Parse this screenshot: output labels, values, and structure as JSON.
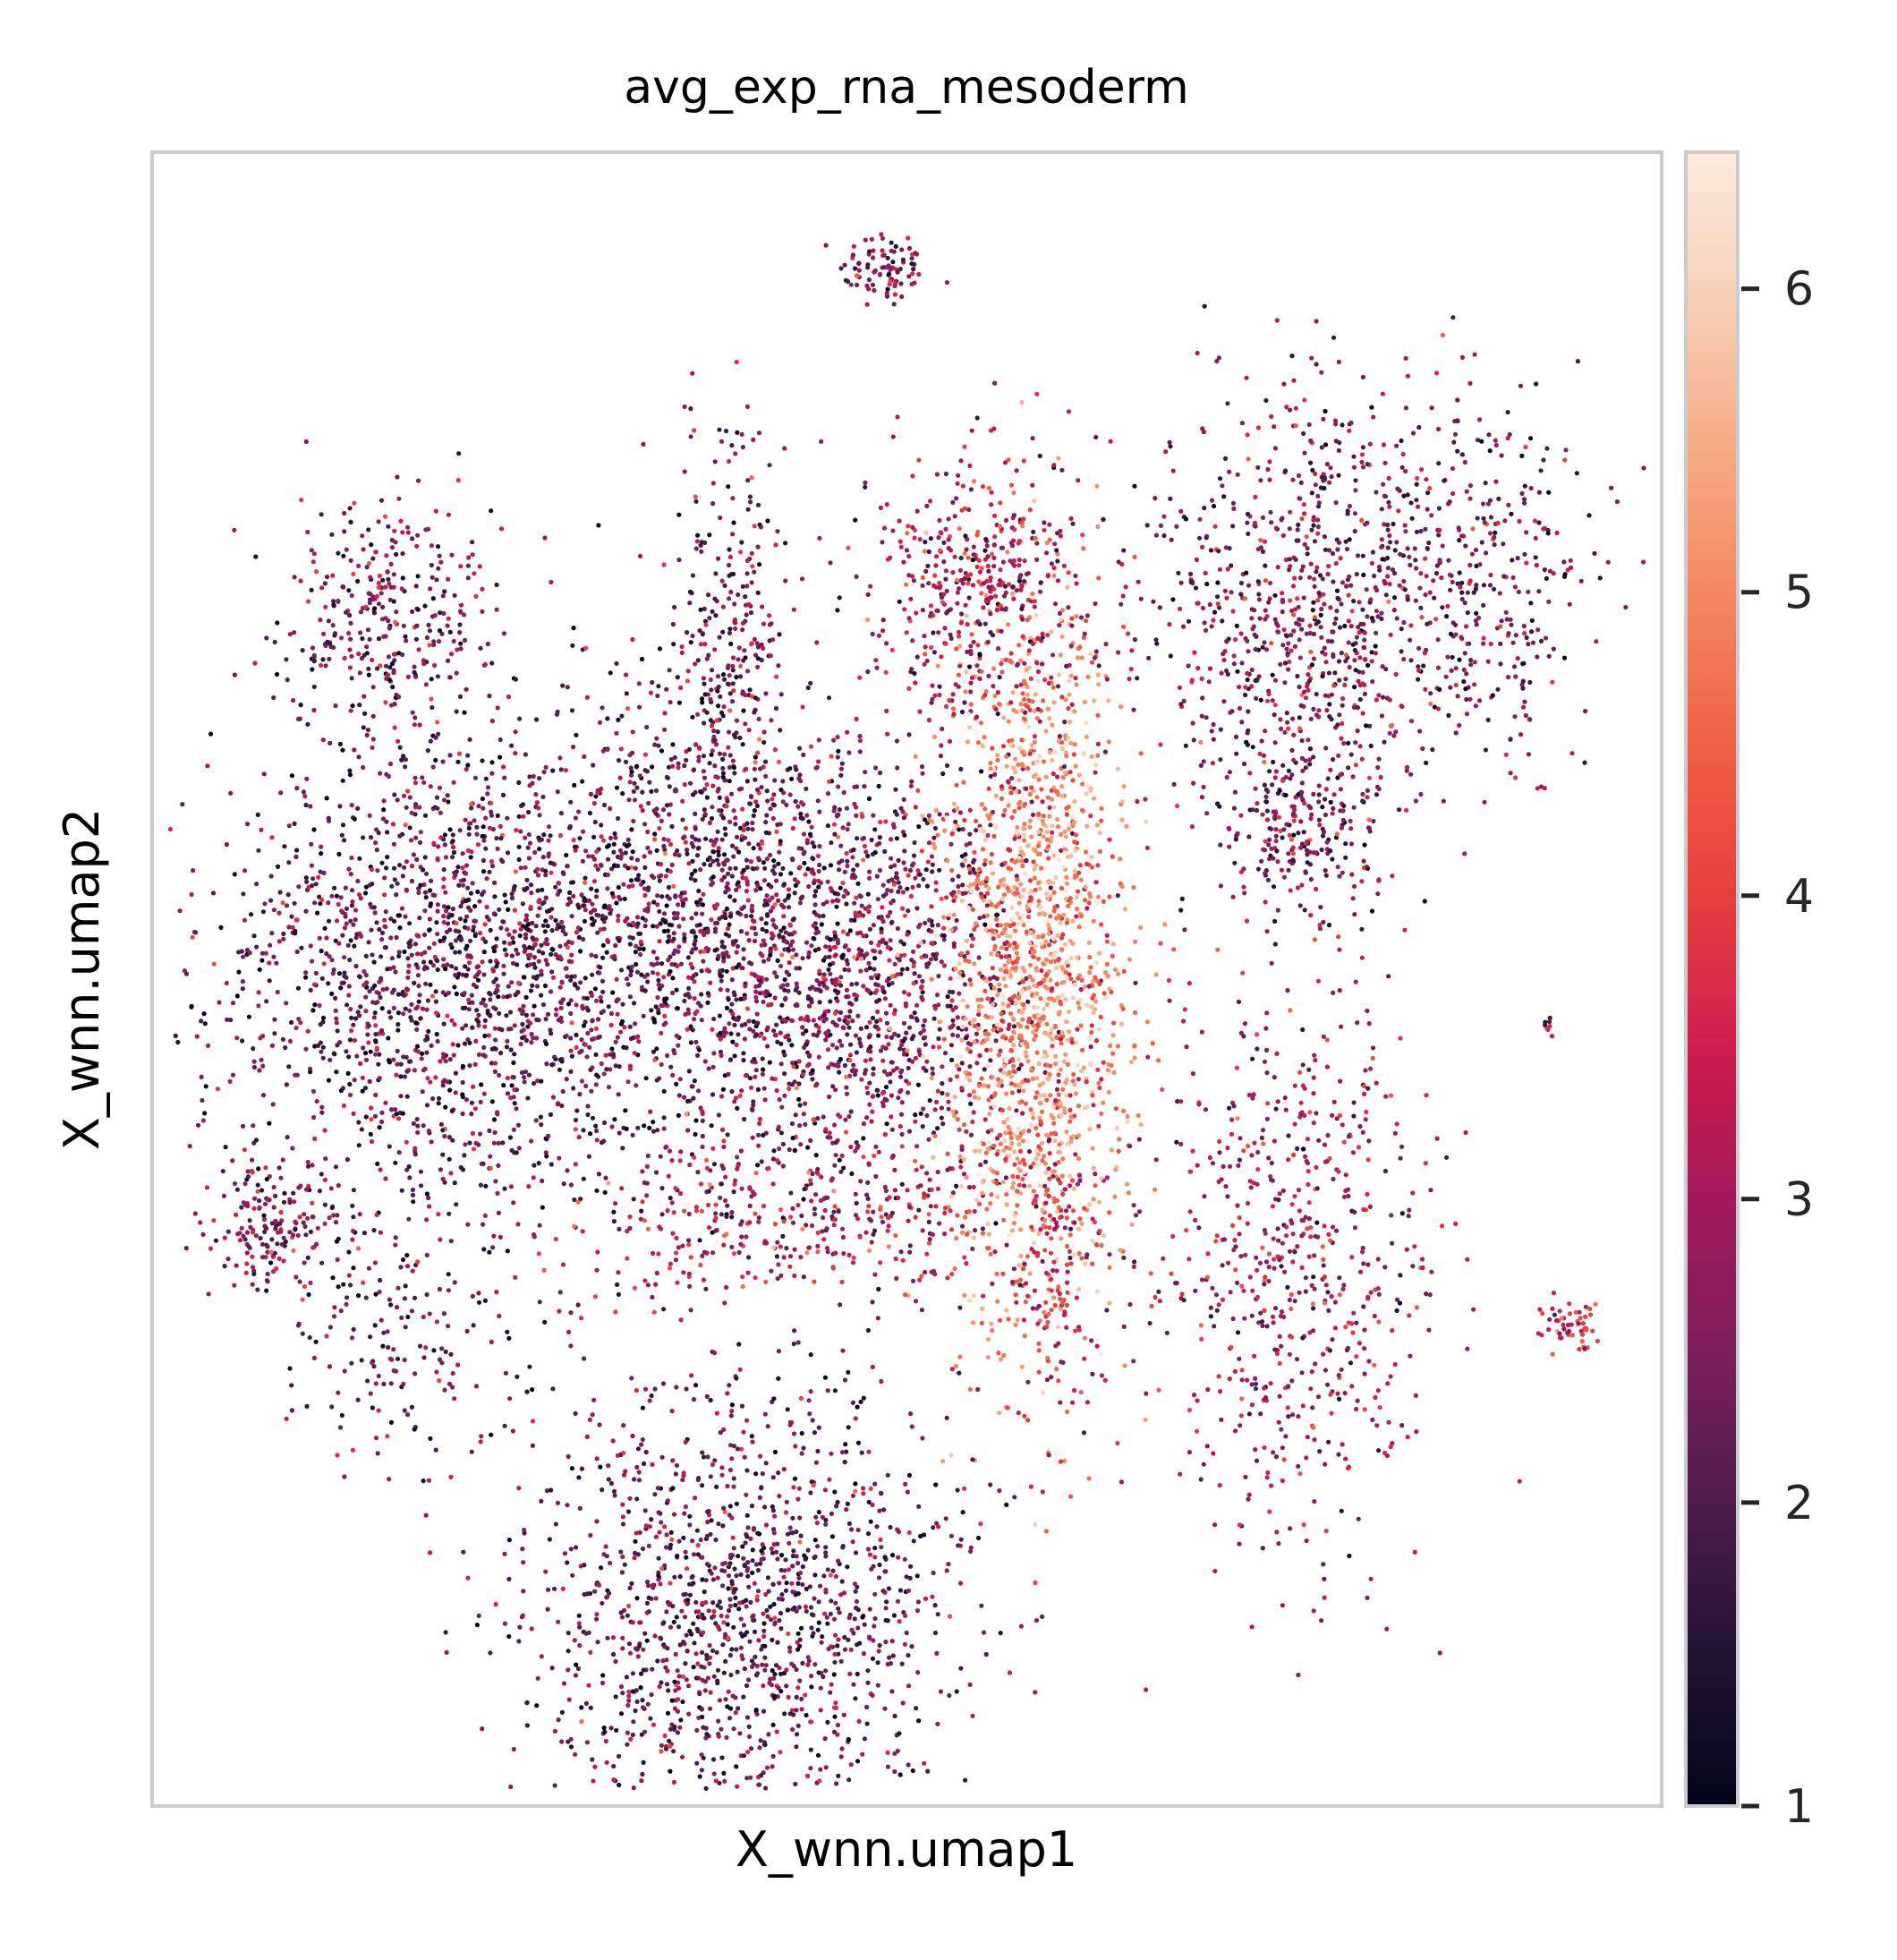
{
  "chart_data": {
    "type": "scatter",
    "title": "avg_exp_rna_mesoderm",
    "xlabel": "X_wnn.umap1",
    "ylabel": "X_wnn.umap2",
    "x_ticks_shown": false,
    "y_ticks_shown": false,
    "grid": false,
    "colormap": "rocket",
    "colorbar": {
      "range": [
        1.0,
        6.45
      ],
      "ticks": [
        1,
        2,
        3,
        4,
        5,
        6
      ],
      "tick_labels": [
        "1",
        "2",
        "3",
        "4",
        "5",
        "6"
      ],
      "colors": [
        "#03051a",
        "#221331",
        "#4c1d4b",
        "#7a1f5a",
        "#a11a5b",
        "#cb1b4f",
        "#e83f3f",
        "#f06043",
        "#f3875f",
        "#f6ab83",
        "#f6d0b6",
        "#faebdd"
      ]
    },
    "point_clusters": [
      {
        "name": "top-small-island",
        "x": 0.485,
        "y": 0.93,
        "spread": [
          0.015,
          0.012
        ],
        "level": 2.6,
        "n": 90
      },
      {
        "name": "upper-left-blob",
        "x": 0.155,
        "y": 0.72,
        "spread": [
          0.035,
          0.035
        ],
        "level": 2.5,
        "n": 320
      },
      {
        "name": "left-large-region",
        "x": 0.18,
        "y": 0.5,
        "spread": [
          0.07,
          0.08
        ],
        "level": 2.3,
        "n": 1300
      },
      {
        "name": "center-left-mass",
        "x": 0.34,
        "y": 0.53,
        "spread": [
          0.085,
          0.07
        ],
        "level": 2.2,
        "n": 1500
      },
      {
        "name": "center-right-mass",
        "x": 0.47,
        "y": 0.5,
        "spread": [
          0.06,
          0.07
        ],
        "level": 2.6,
        "n": 1200
      },
      {
        "name": "upper-arm",
        "x": 0.38,
        "y": 0.69,
        "spread": [
          0.02,
          0.07
        ],
        "level": 2.4,
        "n": 330
      },
      {
        "name": "central-spindle",
        "x": 0.585,
        "y": 0.51,
        "spread": [
          0.03,
          0.11
        ],
        "level": 4.9,
        "n": 1500
      },
      {
        "name": "spindle-top-stalk",
        "x": 0.55,
        "y": 0.74,
        "spread": [
          0.04,
          0.04
        ],
        "level": 3.1,
        "n": 450
      },
      {
        "name": "upper-right-network",
        "x": 0.76,
        "y": 0.72,
        "spread": [
          0.05,
          0.07
        ],
        "level": 2.6,
        "n": 800
      },
      {
        "name": "far-right-triangle",
        "x": 0.88,
        "y": 0.74,
        "spread": [
          0.04,
          0.05
        ],
        "level": 2.5,
        "n": 350
      },
      {
        "name": "right-lower-knot",
        "x": 0.76,
        "y": 0.59,
        "spread": [
          0.025,
          0.025
        ],
        "level": 2.4,
        "n": 200
      },
      {
        "name": "right-curving-arm",
        "x": 0.75,
        "y": 0.33,
        "spread": [
          0.05,
          0.09
        ],
        "level": 3.0,
        "n": 650
      },
      {
        "name": "left-small-blob",
        "x": 0.08,
        "y": 0.35,
        "spread": [
          0.02,
          0.022
        ],
        "level": 2.8,
        "n": 160
      },
      {
        "name": "lower-left-strand",
        "x": 0.16,
        "y": 0.28,
        "spread": [
          0.035,
          0.04
        ],
        "level": 2.2,
        "n": 160
      },
      {
        "name": "bottom-flask",
        "x": 0.39,
        "y": 0.12,
        "spread": [
          0.07,
          0.07
        ],
        "level": 2.3,
        "n": 1400
      },
      {
        "name": "lower-central-bridge",
        "x": 0.42,
        "y": 0.35,
        "spread": [
          0.08,
          0.025
        ],
        "level": 3.2,
        "n": 320
      },
      {
        "name": "spindle-lower-tail",
        "x": 0.6,
        "y": 0.32,
        "spread": [
          0.015,
          0.04
        ],
        "level": 3.6,
        "n": 130
      },
      {
        "name": "right-small-blob",
        "x": 0.94,
        "y": 0.29,
        "spread": [
          0.01,
          0.008
        ],
        "level": 3.6,
        "n": 55
      },
      {
        "name": "right-tiny-dot",
        "x": 0.925,
        "y": 0.47,
        "spread": [
          0.002,
          0.003
        ],
        "level": 3.0,
        "n": 8
      }
    ]
  }
}
